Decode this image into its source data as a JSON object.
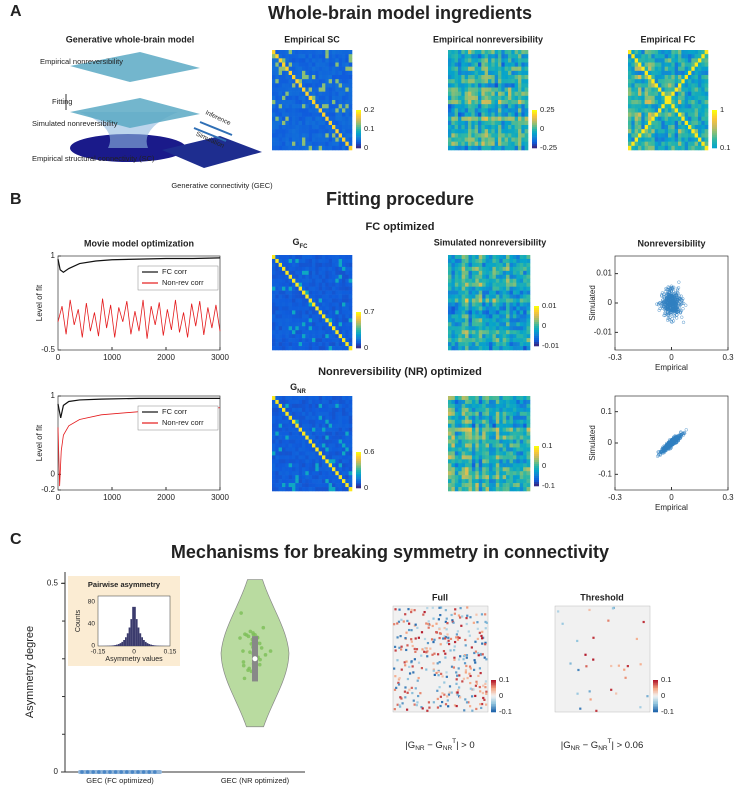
{
  "panel_a": {
    "letter": "A",
    "title": "Whole-brain model ingredients",
    "model": {
      "title": "Generative whole-brain model",
      "labels": [
        "Empirical nonreversibility",
        "Fitting",
        "Simulated nonreversibility",
        "Empirical structural connectivity (SC)",
        "Inference",
        "Simulation",
        "Generative connectivity (GEC)"
      ]
    },
    "sc": {
      "title": "Empirical SC",
      "colorbar": [
        "0.2",
        "0.1",
        "0"
      ]
    },
    "nonrev": {
      "title": "Empirical nonreversibility",
      "colorbar": [
        "0.25",
        "0",
        "-0.25"
      ]
    },
    "fc": {
      "title": "Empirical FC",
      "colorbar": [
        "1",
        "0.1"
      ]
    }
  },
  "panel_b": {
    "letter": "B",
    "title": "Fitting procedure",
    "row_fc": {
      "title": "FC optimized",
      "optimization": {
        "title": "Movie model optimization",
        "y_label": "Level of fit",
        "xlim": [
          0,
          3000
        ],
        "xticks": [
          1000,
          2000,
          3000
        ],
        "ylim": [
          -0.5,
          1
        ],
        "yticks": [
          -0.5,
          1
        ],
        "series": [
          {
            "name": "FC corr",
            "color": "#111111",
            "x": [
              0,
              40,
              100,
              200,
              400,
              700,
              1000,
              1500,
              2000,
              2500,
              3000
            ],
            "values": [
              0.95,
              0.78,
              0.74,
              0.8,
              0.88,
              0.92,
              0.94,
              0.95,
              0.96,
              0.96,
              0.97
            ]
          },
          {
            "name": "Non-rev corr",
            "color": "#e41a1c",
            "x": [
              0,
              75,
              150,
              225,
              300,
              375,
              450,
              525,
              600,
              675,
              750,
              825,
              900,
              975,
              1050,
              1125,
              1200,
              1275,
              1350,
              1425,
              1500,
              1575,
              1650,
              1725,
              1800,
              1875,
              1950,
              2025,
              2100,
              2175,
              2250,
              2325,
              2400,
              2475,
              2550,
              2625,
              2700,
              2775,
              2850,
              2925,
              3000
            ],
            "values": [
              -0.05,
              0.2,
              -0.25,
              0.3,
              -0.1,
              0.15,
              -0.3,
              0.25,
              -0.2,
              0.1,
              -0.28,
              0.32,
              -0.15,
              0.22,
              -0.3,
              0.18,
              -0.05,
              0.28,
              -0.25,
              0.12,
              -0.2,
              0.3,
              -0.32,
              0.2,
              -0.1,
              0.26,
              -0.27,
              0.15,
              -0.18,
              0.3,
              -0.22,
              0.1,
              -0.3,
              0.24,
              -0.12,
              0.28,
              -0.26,
              0.18,
              -0.15,
              0.22,
              -0.2
            ]
          }
        ]
      },
      "g": {
        "title": {
          "main": "G",
          "sub": "FC"
        },
        "colorbar": [
          "0.7",
          "0"
        ]
      },
      "simulated": {
        "title": "Simulated nonreversibility",
        "colorbar": [
          "0.01",
          "0",
          "-0.01"
        ]
      },
      "scatter": {
        "title": "Nonreversibility",
        "x_label": "Empirical",
        "y_label": "Simulated",
        "xlim": [
          -0.3,
          0.3
        ],
        "xticks": [
          -0.3,
          0,
          0.3
        ],
        "ylim": [
          -0.016,
          0.016
        ],
        "yticks": [
          -0.01,
          0,
          0.01
        ]
      }
    },
    "row_nr": {
      "title": "Nonreversibility (NR) optimized",
      "optimization": {
        "y_label": "Level of fit",
        "xlim": [
          0,
          3000
        ],
        "xticks": [
          1000,
          2000,
          3000
        ],
        "ylim": [
          -0.2,
          1
        ],
        "yticks": [
          -0.2,
          0,
          1
        ],
        "series": [
          {
            "name": "FC corr",
            "color": "#111111",
            "x": [
              0,
              50,
              100,
              200,
              400,
              800,
              1500,
              3000
            ],
            "values": [
              0.9,
              0.72,
              0.88,
              0.93,
              0.95,
              0.96,
              0.97,
              0.97
            ]
          },
          {
            "name": "Non-rev corr",
            "color": "#e41a1c",
            "x": [
              0,
              30,
              60,
              100,
              200,
              400,
              800,
              1500,
              3000
            ],
            "values": [
              0.6,
              -0.15,
              0.3,
              0.5,
              0.62,
              0.7,
              0.76,
              0.8,
              0.85
            ]
          }
        ]
      },
      "g": {
        "title": {
          "main": "G",
          "sub": "NR"
        },
        "colorbar": [
          "0.6",
          "0"
        ]
      },
      "simulated": {
        "colorbar": [
          "0.1",
          "0",
          "-0.1"
        ]
      },
      "scatter": {
        "x_label": "Empirical",
        "y_label": "Simulated",
        "xlim": [
          -0.3,
          0.3
        ],
        "xticks": [
          -0.3,
          0,
          0.3
        ],
        "ylim": [
          -0.15,
          0.15
        ],
        "yticks": [
          -0.1,
          0,
          0.1
        ]
      }
    }
  },
  "panel_c": {
    "letter": "C",
    "title": "Mechanisms for breaking symmetry in connectivity",
    "violin": {
      "y_label": "Asymmetry degree",
      "categories": [
        "GEC (FC optimized)",
        "GEC (NR optimized)"
      ],
      "ylim": [
        0,
        0.53
      ],
      "yticks": [
        0,
        0.5
      ]
    },
    "inset": {
      "title": "Pairwise asymmetry",
      "y_label": "Counts",
      "x_label": "Asymmetry values",
      "xlim": [
        -0.15,
        0.15
      ],
      "xticks": [
        -0.15,
        0,
        0.15
      ],
      "ylim": [
        0,
        90
      ],
      "yticks": [
        0,
        40,
        80
      ]
    },
    "full": {
      "title": "Full",
      "colorbar": [
        "0.1",
        "0",
        "-0.1"
      ],
      "formula": [
        {
          "t": "|G"
        },
        {
          "t": "NR",
          "sub": true
        },
        {
          "t": " − G"
        },
        {
          "t": "NR",
          "sub": true
        },
        {
          "t": "T",
          "sup": true
        },
        {
          "t": "| > 0"
        }
      ]
    },
    "threshold": {
      "title": "Threshold",
      "colorbar": [
        "0.1",
        "0",
        "-0.1"
      ],
      "formula": [
        {
          "t": "|G"
        },
        {
          "t": "NR",
          "sub": true
        },
        {
          "t": " − G"
        },
        {
          "t": "NR",
          "sub": true
        },
        {
          "t": "T",
          "sup": true
        },
        {
          "t": "| > 0.06"
        }
      ]
    }
  }
}
